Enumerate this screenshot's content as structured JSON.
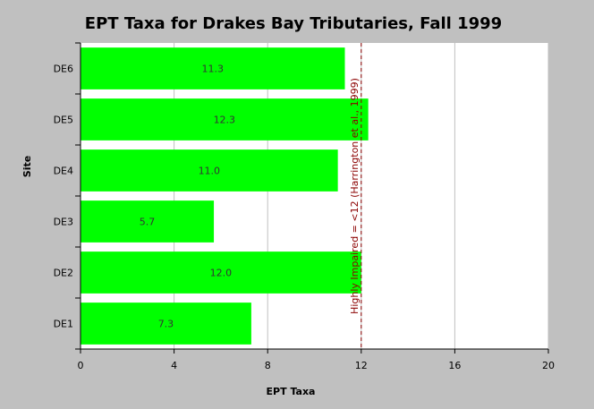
{
  "chart_data": {
    "type": "bar",
    "orientation": "horizontal",
    "title": "EPT Taxa for Drakes Bay Tributaries, Fall 1999",
    "xlabel": "EPT Taxa",
    "ylabel": "Site",
    "categories": [
      "DE1",
      "DE2",
      "DE3",
      "DE4",
      "DE5",
      "DE6"
    ],
    "values": [
      7.3,
      12.0,
      5.7,
      11.0,
      12.3,
      11.3
    ],
    "value_labels": [
      "7.3",
      "12.0",
      "5.7",
      "11.0",
      "12.3",
      "11.3"
    ],
    "xlim": [
      0,
      20
    ],
    "xticks": [
      0,
      4,
      8,
      12,
      16,
      20
    ],
    "xtick_labels": [
      "0",
      "4",
      "8",
      "12",
      "16",
      "20"
    ],
    "vertical_grid": true,
    "reference_line": {
      "value": 12,
      "label": "Highly Impaired = <12 (Harrington et al., 1999)"
    },
    "colors": {
      "bar": "#00ff00",
      "plot_background": "#ffffff",
      "page_background": "#c0c0c0",
      "grid": "#c0c0c0",
      "reference_line": "#8b0000"
    }
  }
}
